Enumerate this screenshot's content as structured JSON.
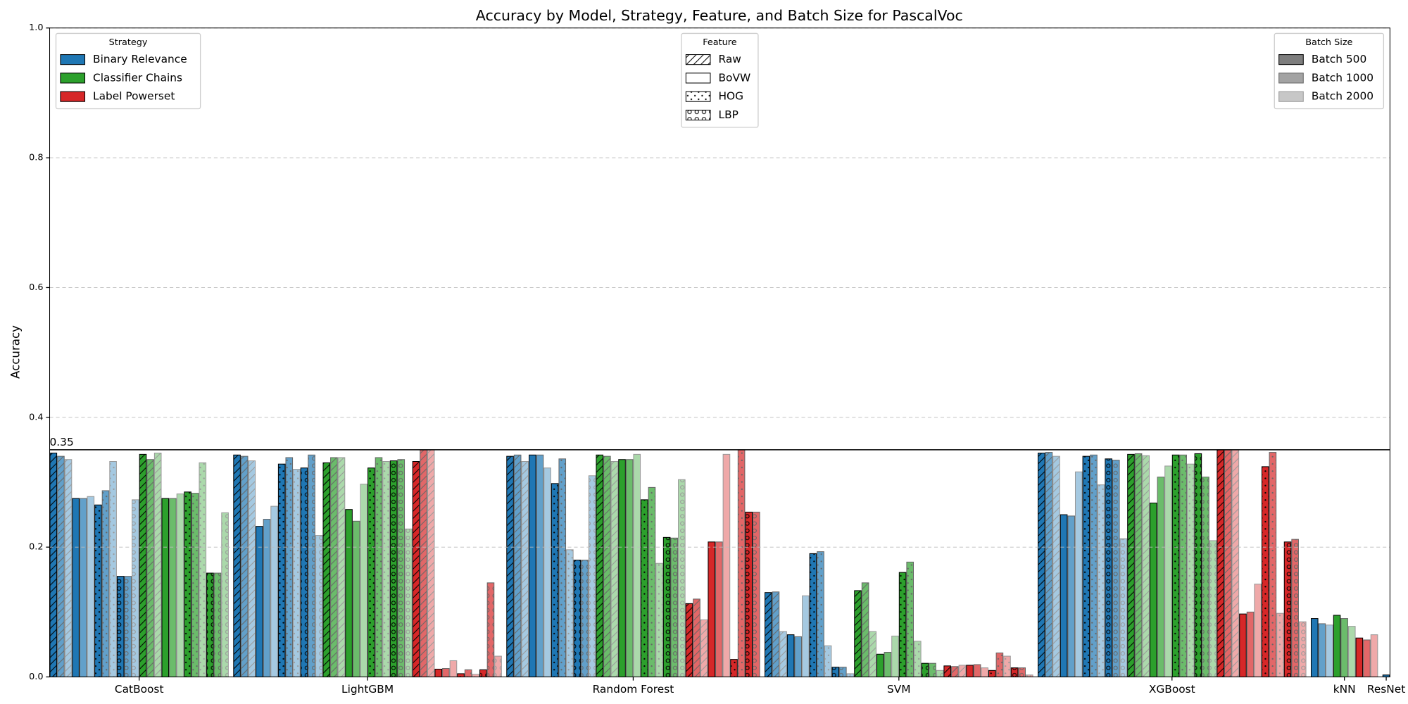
{
  "chart_data": {
    "type": "bar",
    "title": "Accuracy by Model, Strategy, Feature, and Batch Size for PascalVoc",
    "y_label": "Accuracy",
    "categories": [
      "CatBoost",
      "LightGBM",
      "Random Forest",
      "SVM",
      "XGBoost",
      "kNN",
      "ResNet"
    ],
    "strategies": [
      "Binary Relevance",
      "Classifier Chains",
      "Label Powerset"
    ],
    "features": [
      "Raw",
      "BoVW",
      "HOG",
      "LBP"
    ],
    "batch_sizes": [
      "Batch 500",
      "Batch 1000",
      "Batch 2000"
    ],
    "strategy_title": "Strategy",
    "feature_title": "Feature",
    "batch_title": "Batch Size",
    "strategy_colors": [
      "#1f77b4",
      "#2ca02c",
      "#d62728"
    ],
    "batch_opacity": [
      1,
      0.7,
      0.4
    ],
    "feature_hatches": [
      "/",
      null,
      "..",
      "o"
    ],
    "threshold": 0.35,
    "ylim": [
      0,
      1
    ],
    "yticks": [
      {
        "value": 0,
        "label": "0.0"
      },
      0.2,
      0.4,
      0.6,
      0.8,
      {
        "value": 1,
        "label": "1.0"
      }
    ],
    "grid": true,
    "values": [
      [
        [
          [
            0.345,
            0.34,
            0.335
          ],
          [
            0.275,
            0.275,
            0.278
          ],
          [
            0.265,
            0.287,
            0.332
          ],
          [
            0.155,
            0.155,
            0.273
          ]
        ],
        [
          [
            0.343,
            0.335,
            0.345
          ],
          [
            0.275,
            0.275,
            0.282
          ],
          [
            0.285,
            0.283,
            0.33
          ],
          [
            0.16,
            0.16,
            0.253
          ]
        ],
        [
          [
            null,
            null,
            null
          ],
          [
            null,
            null,
            null
          ],
          [
            null,
            null,
            null
          ],
          [
            null,
            null,
            null
          ]
        ]
      ],
      [
        [
          [
            0.342,
            0.34,
            0.333
          ],
          [
            0.232,
            0.243,
            0.263
          ],
          [
            0.328,
            0.338,
            0.32
          ],
          [
            0.322,
            0.342,
            0.218
          ]
        ],
        [
          [
            0.33,
            0.338,
            0.338
          ],
          [
            0.258,
            0.24,
            0.297
          ],
          [
            0.322,
            0.338,
            0.332
          ],
          [
            0.333,
            0.335,
            0.228
          ]
        ],
        [
          [
            0.332,
            0.35,
            0.35
          ],
          [
            0.012,
            0.013,
            0.025
          ],
          [
            0.005,
            0.011,
            0.004
          ],
          [
            0.011,
            0.145,
            0.032
          ]
        ]
      ],
      [
        [
          [
            0.34,
            0.342,
            0.332
          ],
          [
            0.342,
            0.342,
            0.322
          ],
          [
            0.298,
            0.336,
            0.196
          ],
          [
            0.18,
            0.18,
            0.31
          ]
        ],
        [
          [
            0.342,
            0.34,
            0.332
          ],
          [
            0.335,
            0.335,
            0.343
          ],
          [
            0.273,
            0.292,
            0.175
          ],
          [
            0.215,
            0.214,
            0.304
          ]
        ],
        [
          [
            0.113,
            0.12,
            0.088
          ],
          [
            0.208,
            0.208,
            0.343
          ],
          [
            0.027,
            0.35,
            null
          ],
          [
            0.254,
            0.254,
            null
          ]
        ]
      ],
      [
        [
          [
            0.13,
            0.131,
            0.07
          ],
          [
            0.065,
            0.062,
            0.125
          ],
          [
            0.19,
            0.193,
            0.048
          ],
          [
            0.015,
            0.015,
            0.005
          ]
        ],
        [
          [
            0.133,
            0.145,
            0.07
          ],
          [
            0.035,
            0.038,
            0.063
          ],
          [
            0.161,
            0.177,
            0.055
          ],
          [
            0.021,
            0.021,
            0.01
          ]
        ],
        [
          [
            0.017,
            0.016,
            0.018
          ],
          [
            0.018,
            0.019,
            0.014
          ],
          [
            0.01,
            0.037,
            0.032
          ],
          [
            0.014,
            0.014,
            0.003
          ]
        ]
      ],
      [
        [
          [
            0.345,
            0.346,
            0.34
          ],
          [
            0.25,
            0.248,
            0.316
          ],
          [
            0.34,
            0.342,
            0.296
          ],
          [
            0.336,
            0.334,
            0.213
          ]
        ],
        [
          [
            0.343,
            0.344,
            0.341
          ],
          [
            0.268,
            0.308,
            0.325
          ],
          [
            0.342,
            0.342,
            0.328
          ],
          [
            0.344,
            0.308,
            0.21
          ]
        ],
        [
          [
            0.35,
            0.35,
            0.35
          ],
          [
            0.097,
            0.1,
            0.143
          ],
          [
            0.324,
            0.346,
            0.098
          ],
          [
            0.208,
            0.212,
            0.085
          ]
        ]
      ],
      [
        [
          [
            null,
            null,
            null
          ],
          [
            0.09,
            0.082,
            0.08
          ],
          [
            null,
            null,
            null
          ],
          [
            null,
            null,
            null
          ]
        ],
        [
          [
            null,
            null,
            null
          ],
          [
            0.095,
            0.09,
            0.078
          ],
          [
            null,
            null,
            null
          ],
          [
            null,
            null,
            null
          ]
        ],
        [
          [
            null,
            null,
            null
          ],
          [
            0.06,
            0.057,
            0.065
          ],
          [
            null,
            null,
            null
          ],
          [
            null,
            null,
            null
          ]
        ]
      ],
      [
        [
          [
            null,
            null,
            null
          ],
          [
            0.003,
            null,
            null
          ],
          [
            null,
            null,
            null
          ],
          [
            null,
            null,
            null
          ]
        ],
        [
          [
            null,
            null,
            null
          ],
          [
            null,
            null,
            null
          ],
          [
            null,
            null,
            null
          ],
          [
            null,
            null,
            null
          ]
        ],
        [
          [
            null,
            null,
            null
          ],
          [
            null,
            null,
            null
          ],
          [
            null,
            null,
            null
          ],
          [
            null,
            null,
            null
          ]
        ]
      ]
    ]
  }
}
